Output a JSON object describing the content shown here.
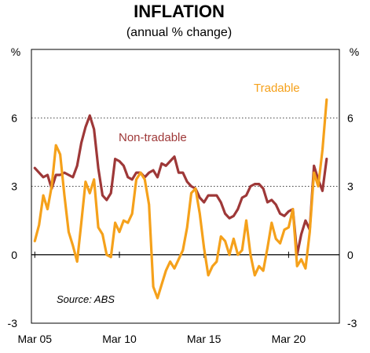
{
  "chart_data": {
    "type": "line",
    "title": "INFLATION",
    "subtitle": "(annual % change)",
    "ylabel_left": "%",
    "ylabel_right": "%",
    "source": "Source: ABS",
    "ylim": [
      -3,
      9
    ],
    "y_ticks": [
      "-3",
      "0",
      "3",
      "6"
    ],
    "x_ticks": [
      {
        "label": "Mar 05",
        "x": 2005.0
      },
      {
        "label": "Mar 10",
        "x": 2010.0
      },
      {
        "label": "Mar 15",
        "x": 2015.0
      },
      {
        "label": "Mar 20",
        "x": 2020.0
      }
    ],
    "grid": "dotted horizontal at 3 and 6; solid zero line",
    "series": [
      {
        "name": "Tradable",
        "color": "#F5A11B",
        "points": [
          [
            2005.0,
            0.6
          ],
          [
            2005.25,
            1.3
          ],
          [
            2005.5,
            2.6
          ],
          [
            2005.75,
            2.0
          ],
          [
            2006.0,
            3.0
          ],
          [
            2006.25,
            4.8
          ],
          [
            2006.5,
            4.4
          ],
          [
            2006.75,
            2.6
          ],
          [
            2007.0,
            1.0
          ],
          [
            2007.25,
            0.4
          ],
          [
            2007.5,
            -0.3
          ],
          [
            2007.75,
            1.4
          ],
          [
            2008.0,
            3.2
          ],
          [
            2008.25,
            2.7
          ],
          [
            2008.5,
            3.3
          ],
          [
            2008.75,
            1.2
          ],
          [
            2009.0,
            0.9
          ],
          [
            2009.25,
            0.0
          ],
          [
            2009.5,
            -0.1
          ],
          [
            2009.75,
            1.4
          ],
          [
            2010.0,
            1.0
          ],
          [
            2010.25,
            1.5
          ],
          [
            2010.5,
            1.4
          ],
          [
            2010.75,
            1.8
          ],
          [
            2011.0,
            3.3
          ],
          [
            2011.25,
            3.6
          ],
          [
            2011.5,
            3.3
          ],
          [
            2011.75,
            2.2
          ],
          [
            2012.0,
            -1.4
          ],
          [
            2012.25,
            -1.9
          ],
          [
            2012.5,
            -1.3
          ],
          [
            2012.75,
            -0.7
          ],
          [
            2013.0,
            -0.3
          ],
          [
            2013.25,
            -0.6
          ],
          [
            2013.5,
            -0.2
          ],
          [
            2013.75,
            0.2
          ],
          [
            2014.0,
            1.2
          ],
          [
            2014.25,
            2.7
          ],
          [
            2014.5,
            2.9
          ],
          [
            2014.75,
            1.8
          ],
          [
            2015.0,
            0.3
          ],
          [
            2015.25,
            -0.9
          ],
          [
            2015.5,
            -0.5
          ],
          [
            2015.75,
            -0.3
          ],
          [
            2016.0,
            0.8
          ],
          [
            2016.25,
            0.6
          ],
          [
            2016.5,
            0.0
          ],
          [
            2016.75,
            0.7
          ],
          [
            2017.0,
            0.0
          ],
          [
            2017.25,
            0.2
          ],
          [
            2017.5,
            1.5
          ],
          [
            2017.75,
            0.0
          ],
          [
            2018.0,
            -0.9
          ],
          [
            2018.25,
            -0.5
          ],
          [
            2018.5,
            -0.7
          ],
          [
            2018.75,
            0.3
          ],
          [
            2019.0,
            1.4
          ],
          [
            2019.25,
            0.7
          ],
          [
            2019.5,
            0.5
          ],
          [
            2019.75,
            1.1
          ],
          [
            2020.0,
            1.2
          ],
          [
            2020.25,
            2.0
          ],
          [
            2020.5,
            -0.5
          ],
          [
            2020.75,
            -0.2
          ],
          [
            2021.0,
            -0.6
          ],
          [
            2021.25,
            1.0
          ],
          [
            2021.5,
            3.6
          ],
          [
            2021.75,
            3.0
          ],
          [
            2022.0,
            4.6
          ],
          [
            2022.25,
            6.8
          ]
        ]
      },
      {
        "name": "Non-tradable",
        "color": "#9E3838",
        "points": [
          [
            2005.0,
            3.8
          ],
          [
            2005.25,
            3.6
          ],
          [
            2005.5,
            3.4
          ],
          [
            2005.75,
            3.5
          ],
          [
            2006.0,
            2.9
          ],
          [
            2006.25,
            3.5
          ],
          [
            2006.5,
            3.5
          ],
          [
            2006.75,
            3.6
          ],
          [
            2007.0,
            3.5
          ],
          [
            2007.25,
            3.4
          ],
          [
            2007.5,
            3.9
          ],
          [
            2007.75,
            4.9
          ],
          [
            2008.0,
            5.6
          ],
          [
            2008.25,
            6.1
          ],
          [
            2008.5,
            5.5
          ],
          [
            2008.75,
            3.8
          ],
          [
            2009.0,
            2.6
          ],
          [
            2009.25,
            2.4
          ],
          [
            2009.5,
            2.7
          ],
          [
            2009.75,
            4.2
          ],
          [
            2010.0,
            4.1
          ],
          [
            2010.25,
            3.9
          ],
          [
            2010.5,
            3.4
          ],
          [
            2010.75,
            3.3
          ],
          [
            2011.0,
            3.6
          ],
          [
            2011.25,
            3.6
          ],
          [
            2011.5,
            3.4
          ],
          [
            2011.75,
            3.6
          ],
          [
            2012.0,
            3.7
          ],
          [
            2012.25,
            3.4
          ],
          [
            2012.5,
            4.0
          ],
          [
            2012.75,
            3.9
          ],
          [
            2013.0,
            4.1
          ],
          [
            2013.25,
            4.3
          ],
          [
            2013.5,
            3.6
          ],
          [
            2013.75,
            3.6
          ],
          [
            2014.0,
            3.2
          ],
          [
            2014.25,
            3.0
          ],
          [
            2014.5,
            2.9
          ],
          [
            2014.75,
            2.5
          ],
          [
            2015.0,
            2.3
          ],
          [
            2015.25,
            2.6
          ],
          [
            2015.5,
            2.6
          ],
          [
            2015.75,
            2.6
          ],
          [
            2016.0,
            2.3
          ],
          [
            2016.25,
            1.8
          ],
          [
            2016.5,
            1.6
          ],
          [
            2016.75,
            1.7
          ],
          [
            2017.0,
            2.0
          ],
          [
            2017.25,
            2.5
          ],
          [
            2017.5,
            2.6
          ],
          [
            2017.75,
            3.0
          ],
          [
            2018.0,
            3.1
          ],
          [
            2018.25,
            3.1
          ],
          [
            2018.5,
            2.9
          ],
          [
            2018.75,
            2.3
          ],
          [
            2019.0,
            2.4
          ],
          [
            2019.25,
            2.2
          ],
          [
            2019.5,
            1.8
          ],
          [
            2019.75,
            1.7
          ],
          [
            2020.0,
            1.9
          ],
          [
            2020.25,
            2.0
          ],
          [
            2020.5,
            0.0
          ],
          [
            2020.75,
            0.9
          ],
          [
            2021.0,
            1.5
          ],
          [
            2021.25,
            1.1
          ],
          [
            2021.5,
            3.9
          ],
          [
            2021.75,
            3.3
          ],
          [
            2022.0,
            2.8
          ],
          [
            2022.25,
            4.2
          ]
        ]
      }
    ]
  }
}
